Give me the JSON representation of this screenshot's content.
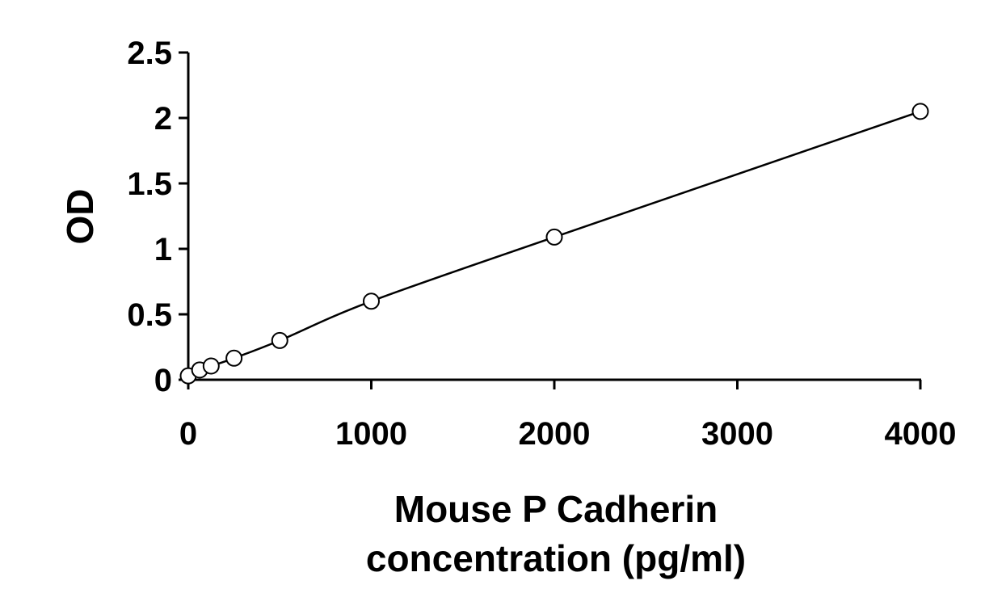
{
  "chart_data": {
    "type": "scatter",
    "title": "",
    "xlabel_lines": [
      "Mouse P Cadherin",
      "concentration (pg/ml)"
    ],
    "ylabel": "OD",
    "xlim": [
      0,
      4000
    ],
    "ylim": [
      0,
      2.5
    ],
    "x_ticks": [
      0,
      1000,
      2000,
      3000,
      4000
    ],
    "x_tick_labels": [
      "0",
      "1000",
      "2000",
      "3000",
      "4000"
    ],
    "y_ticks": [
      0,
      0.5,
      1,
      1.5,
      2,
      2.5
    ],
    "y_tick_labels": [
      "0",
      "0.5",
      "1",
      "1.5",
      "2",
      "2.5"
    ],
    "grid": false,
    "legend": "none",
    "series": [
      {
        "marker": "open-circle",
        "points": [
          {
            "x": 0,
            "y": 0.03
          },
          {
            "x": 62.5,
            "y": 0.075
          },
          {
            "x": 125,
            "y": 0.105
          },
          {
            "x": 250,
            "y": 0.165
          },
          {
            "x": 500,
            "y": 0.3
          },
          {
            "x": 1000,
            "y": 0.6
          },
          {
            "x": 2000,
            "y": 1.09
          },
          {
            "x": 4000,
            "y": 2.05
          }
        ]
      }
    ],
    "trendline": {
      "type": "smooth",
      "from_x": 0,
      "to_x": 4000
    },
    "colors": {
      "line": "#000000",
      "marker_stroke": "#000000",
      "marker_fill": "#ffffff"
    }
  }
}
